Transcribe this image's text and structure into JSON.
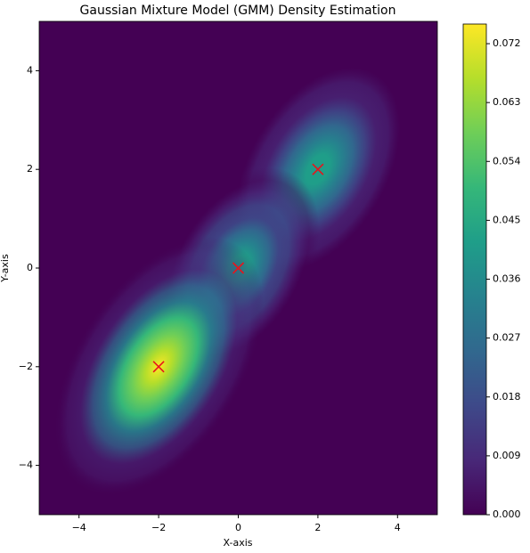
{
  "chart_data": {
    "type": "contourf",
    "title": "Gaussian Mixture Model (GMM) Density Estimation",
    "xlabel": "X-axis",
    "ylabel": "Y-axis",
    "xlim": [
      -5,
      5
    ],
    "ylim": [
      -5,
      5
    ],
    "xticks": [
      {
        "value": -4,
        "label": "−4"
      },
      {
        "value": -2,
        "label": "−2"
      },
      0,
      2,
      4
    ],
    "yticks": [
      {
        "value": -4,
        "label": "−4"
      },
      {
        "value": -2,
        "label": "−2"
      },
      0,
      2,
      4
    ],
    "colormap": [
      "#440154",
      "#482878",
      "#3e4989",
      "#31688e",
      "#26828e",
      "#1f9e89",
      "#35b779",
      "#6ece58",
      "#b5de2b",
      "#fde725"
    ],
    "clim": [
      0,
      0.075
    ],
    "cticks": [
      {
        "value": 0,
        "label": "0.000"
      },
      {
        "value": 0.009,
        "label": "0.009"
      },
      {
        "value": 0.018,
        "label": "0.018"
      },
      {
        "value": 0.027,
        "label": "0.027"
      },
      {
        "value": 0.036,
        "label": "0.036"
      },
      {
        "value": 0.045,
        "label": "0.045"
      },
      {
        "value": 0.054,
        "label": "0.054"
      },
      {
        "value": 0.063,
        "label": "0.063"
      },
      {
        "value": 0.072,
        "label": "0.072"
      }
    ],
    "markers": {
      "x": [
        -2,
        0,
        2
      ],
      "y": [
        -2,
        0,
        2
      ],
      "color": "#e8141c",
      "marker": "x"
    }
  }
}
